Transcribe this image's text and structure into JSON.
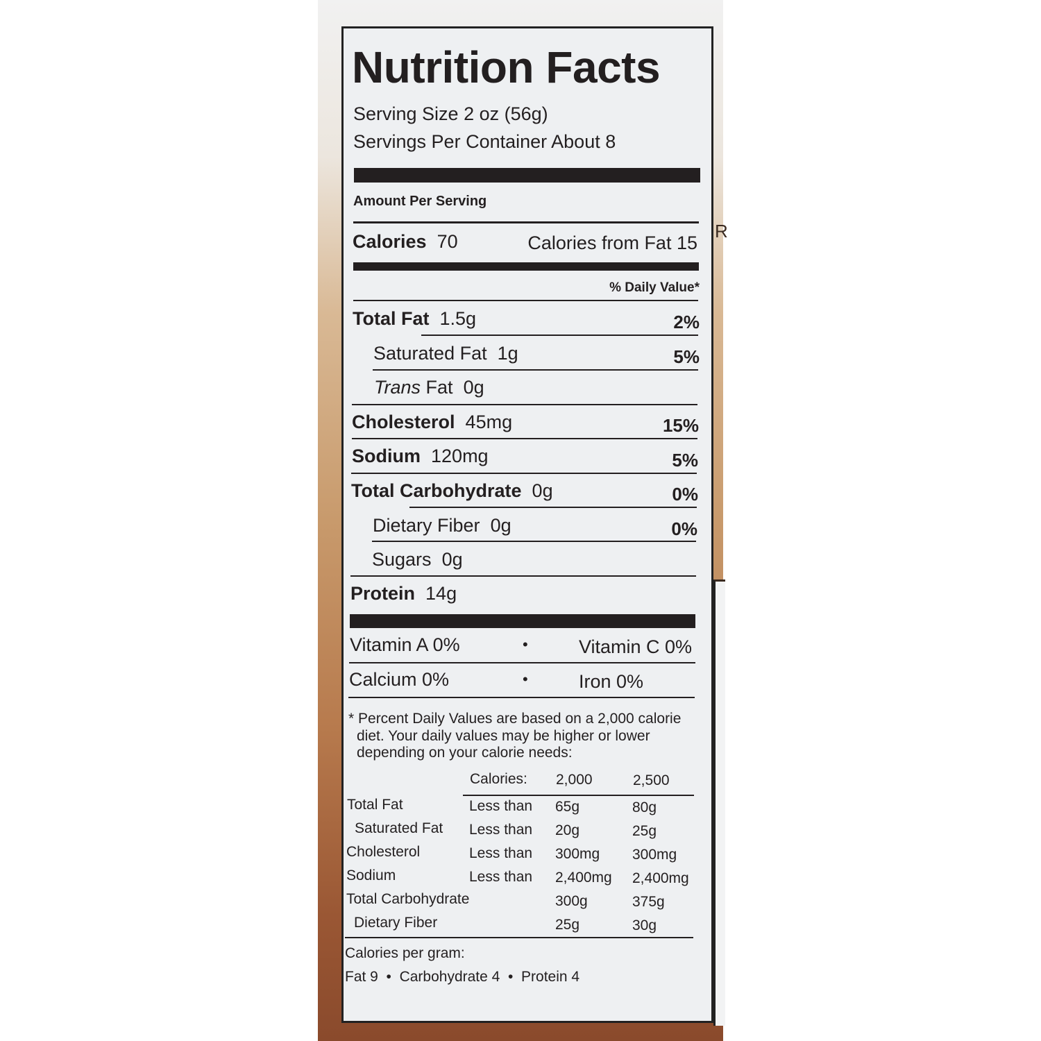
{
  "title": "Nutrition Facts",
  "serving_size": "Serving Size 2 oz (56g)",
  "servings_per_container": "Servings Per Container About 8",
  "amount_per_serving": "Amount Per Serving",
  "calories": {
    "label": "Calories",
    "value": "70",
    "from_fat": "Calories from Fat 15"
  },
  "daily_value_header": "% Daily Value*",
  "nutrients": [
    {
      "label": "Total Fat",
      "amount": "1.5g",
      "dv": "2%"
    },
    {
      "label": "Saturated Fat",
      "amount": "1g",
      "dv": "5%"
    },
    {
      "label": "Trans",
      "label2": "Fat",
      "amount": "0g",
      "dv": ""
    },
    {
      "label": "Cholesterol",
      "amount": "45mg",
      "dv": "15%"
    },
    {
      "label": "Sodium",
      "amount": "120mg",
      "dv": "5%"
    },
    {
      "label": "Total Carbohydrate",
      "amount": "0g",
      "dv": "0%"
    },
    {
      "label": "Dietary Fiber",
      "amount": "0g",
      "dv": "0%"
    },
    {
      "label": "Sugars",
      "amount": "0g",
      "dv": ""
    },
    {
      "label": "Protein",
      "amount": "14g",
      "dv": ""
    }
  ],
  "vitamins": [
    {
      "left": "Vitamin A 0%",
      "right": "Vitamin C 0%"
    },
    {
      "left": "Calcium 0%",
      "right": "Iron 0%"
    }
  ],
  "bullet": "•",
  "footnote": [
    "* Percent Daily Values are based on a 2,000 calorie",
    "diet. Your daily values may be higher or lower",
    "depending on your calorie needs:"
  ],
  "dv_table": {
    "header": [
      "",
      "Calories:",
      "2,000",
      "2,500"
    ],
    "rows": [
      [
        "Total Fat",
        "Less than",
        "65g",
        "80g"
      ],
      [
        "Saturated Fat",
        "Less than",
        "20g",
        "25g"
      ],
      [
        "Cholesterol",
        "Less than",
        "300mg",
        "300mg"
      ],
      [
        "Sodium",
        "Less than",
        "2,400mg",
        "2,400mg"
      ],
      [
        "Total Carbohydrate",
        "",
        "300g",
        "375g"
      ],
      [
        "Dietary Fiber",
        "",
        "25g",
        "30g"
      ]
    ]
  },
  "calories_per_gram": {
    "label": "Calories per gram:",
    "fat": "Fat 9",
    "carb": "Carbohydrate 4",
    "protein": "Protein 4"
  },
  "side_text": "R",
  "colors": {
    "label_bg": "#eef0f2",
    "ink": "#231f20",
    "package_brown": "#8a4a2c"
  }
}
